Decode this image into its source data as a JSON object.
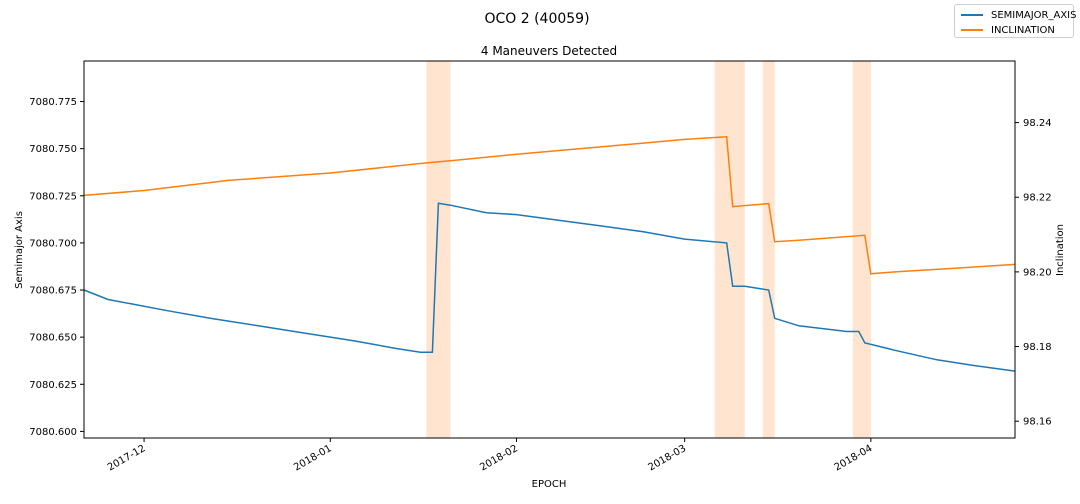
{
  "chart_data": {
    "type": "line",
    "title": "OCO 2 (40059)",
    "subtitle": "4 Maneuvers Detected",
    "xlabel": "EPOCH",
    "ylabel_left": "Semimajor Axis",
    "ylabel_right": "Inclination",
    "x_range": [
      "2017-11-21",
      "2018-04-25"
    ],
    "x_ticks": [
      "2017-12",
      "2018-01",
      "2018-02",
      "2018-03",
      "2018-04"
    ],
    "x_tick_dates": [
      "2017-12-01",
      "2018-01-01",
      "2018-02-01",
      "2018-03-01",
      "2018-04-01"
    ],
    "y_left_range": [
      7080.5965,
      7080.7965
    ],
    "y_left_ticks": [
      "7080.600",
      "7080.625",
      "7080.650",
      "7080.675",
      "7080.700",
      "7080.725",
      "7080.750",
      "7080.775"
    ],
    "y_right_range": [
      98.1555,
      98.2565
    ],
    "y_right_ticks": [
      "98.16",
      "98.18",
      "98.20",
      "98.22",
      "98.24"
    ],
    "grid": false,
    "legend_position": "top-right",
    "maneuver_windows": [
      {
        "start": "2018-01-17",
        "end": "2018-01-21"
      },
      {
        "start": "2018-03-06",
        "end": "2018-03-11"
      },
      {
        "start": "2018-03-14",
        "end": "2018-03-16"
      },
      {
        "start": "2018-03-29",
        "end": "2018-04-01"
      }
    ],
    "series": [
      {
        "name": "SEMIMAJOR_AXIS",
        "axis": "left",
        "color": "#1f77b4",
        "points": [
          [
            "2017-11-21",
            7080.675
          ],
          [
            "2017-11-25",
            7080.67
          ],
          [
            "2017-11-30",
            7080.667
          ],
          [
            "2017-12-05",
            7080.664
          ],
          [
            "2017-12-12",
            7080.66
          ],
          [
            "2017-12-20",
            7080.656
          ],
          [
            "2017-12-28",
            7080.652
          ],
          [
            "2018-01-05",
            7080.648
          ],
          [
            "2018-01-12",
            7080.644
          ],
          [
            "2018-01-16",
            7080.642
          ],
          [
            "2018-01-18",
            7080.642
          ],
          [
            "2018-01-19",
            7080.721
          ],
          [
            "2018-01-21",
            7080.72
          ],
          [
            "2018-01-27",
            7080.716
          ],
          [
            "2018-02-01",
            7080.715
          ],
          [
            "2018-02-08",
            7080.712
          ],
          [
            "2018-02-15",
            7080.709
          ],
          [
            "2018-02-22",
            7080.706
          ],
          [
            "2018-03-01",
            7080.702
          ],
          [
            "2018-03-08",
            7080.7
          ],
          [
            "2018-03-09",
            7080.677
          ],
          [
            "2018-03-11",
            7080.677
          ],
          [
            "2018-03-15",
            7080.675
          ],
          [
            "2018-03-16",
            7080.66
          ],
          [
            "2018-03-20",
            7080.656
          ],
          [
            "2018-03-28",
            7080.653
          ],
          [
            "2018-03-30",
            7080.653
          ],
          [
            "2018-03-31",
            7080.647
          ],
          [
            "2018-04-05",
            7080.643
          ],
          [
            "2018-04-12",
            7080.638
          ],
          [
            "2018-04-18",
            7080.635
          ],
          [
            "2018-04-25",
            7080.632
          ]
        ]
      },
      {
        "name": "INCLINATION",
        "axis": "right",
        "color": "#ff7f0e",
        "points": [
          [
            "2017-11-21",
            98.2205
          ],
          [
            "2017-12-01",
            98.2218
          ],
          [
            "2017-12-15",
            98.2245
          ],
          [
            "2018-01-01",
            98.2265
          ],
          [
            "2018-01-17",
            98.2292
          ],
          [
            "2018-01-21",
            98.2298
          ],
          [
            "2018-02-01",
            98.2315
          ],
          [
            "2018-02-15",
            98.2335
          ],
          [
            "2018-03-01",
            98.2355
          ],
          [
            "2018-03-08",
            98.2362
          ],
          [
            "2018-03-09",
            98.2175
          ],
          [
            "2018-03-15",
            98.2183
          ],
          [
            "2018-03-16",
            98.2081
          ],
          [
            "2018-03-20",
            98.2085
          ],
          [
            "2018-03-31",
            98.2098
          ],
          [
            "2018-04-01",
            98.1995
          ],
          [
            "2018-04-05",
            98.2
          ],
          [
            "2018-04-15",
            98.201
          ],
          [
            "2018-04-25",
            98.202
          ]
        ]
      }
    ]
  }
}
